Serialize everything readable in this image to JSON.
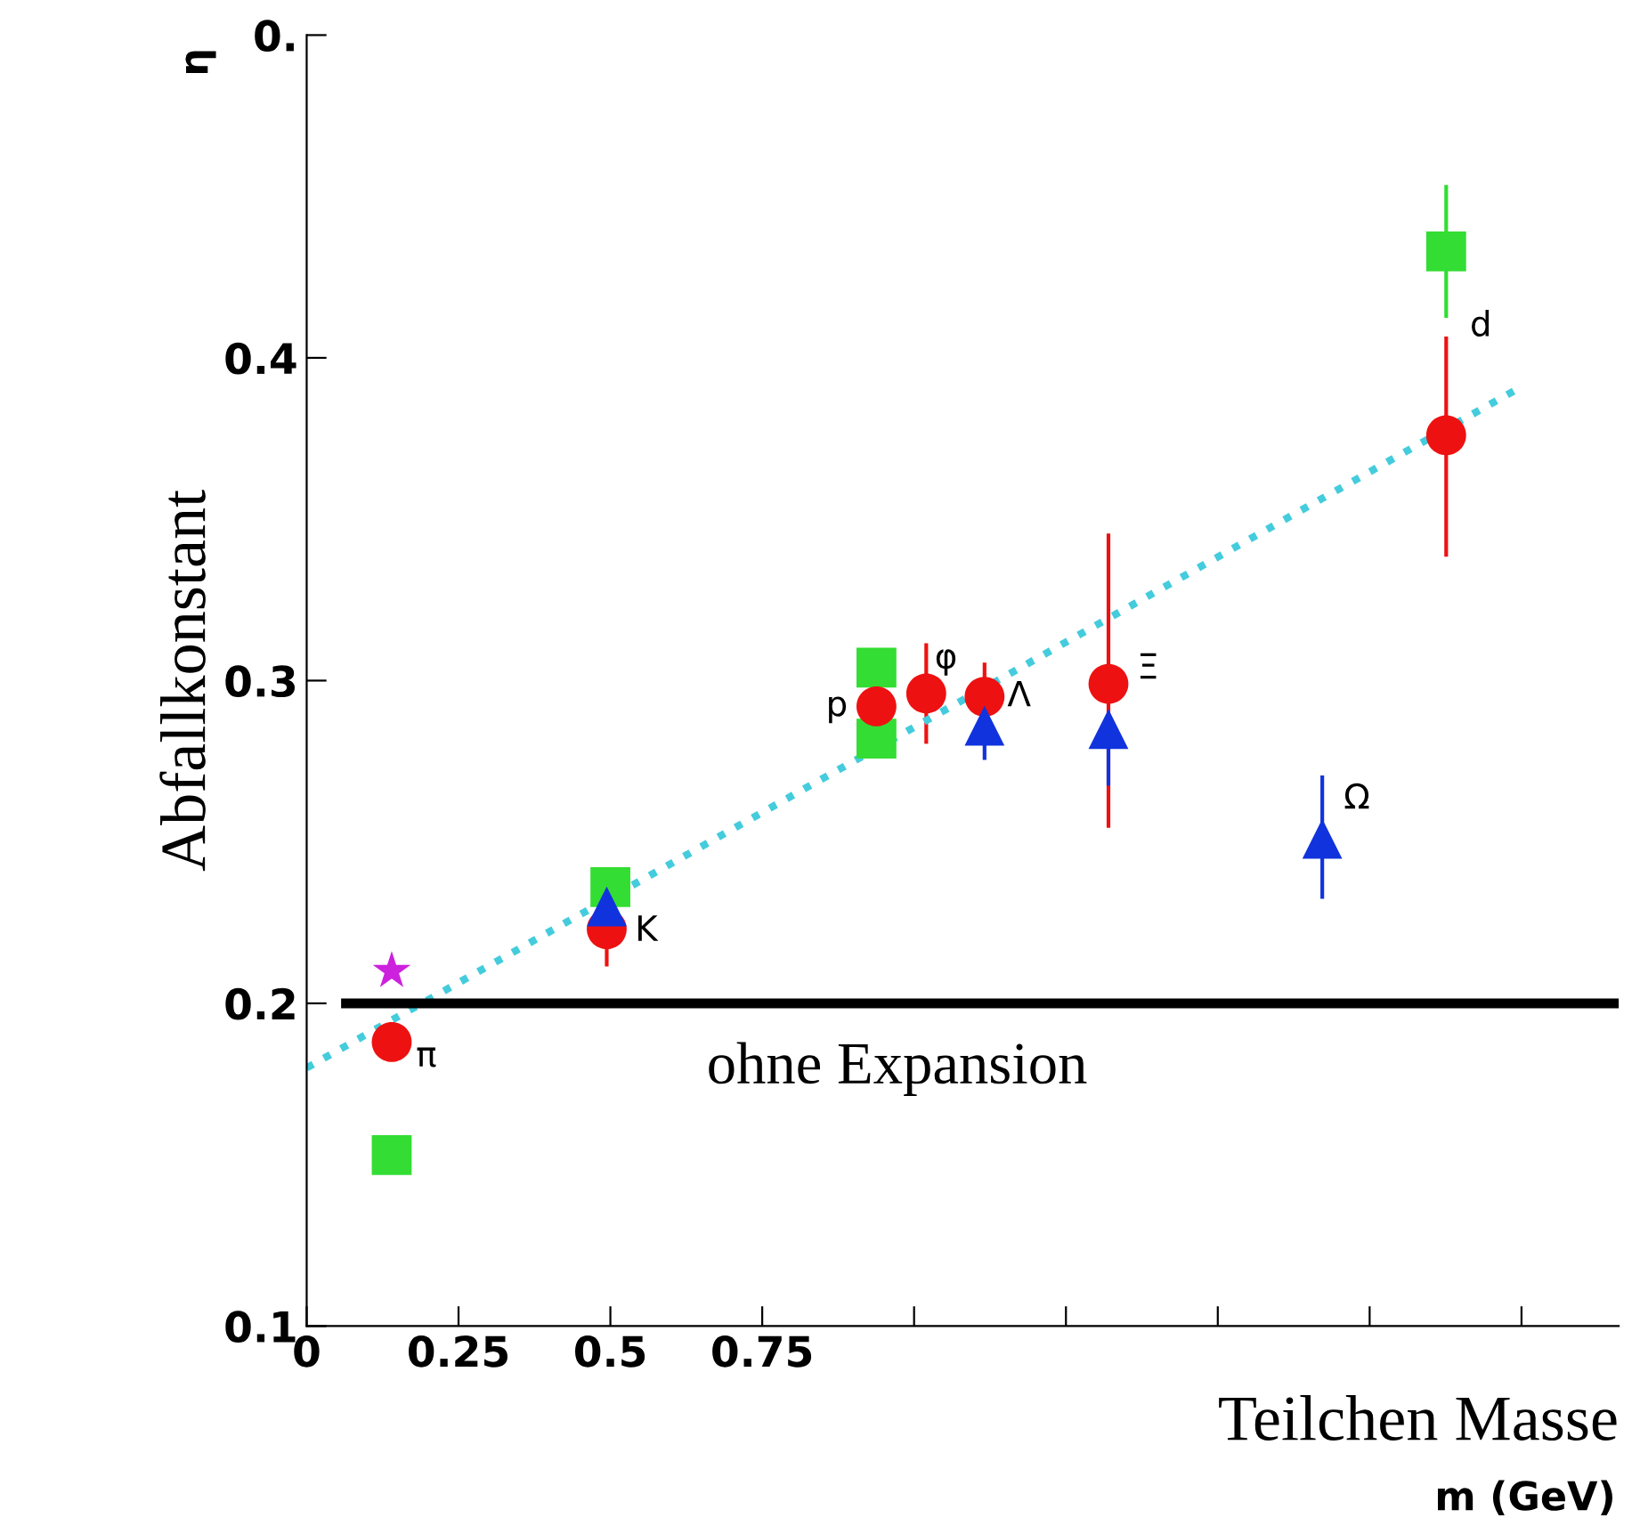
{
  "chart_data": {
    "type": "scatter",
    "xlabel": "Teilchen Masse",
    "ylabel": "Abfallkonstant",
    "xlim": [
      0,
      2.16
    ],
    "ylim": [
      0.1,
      0.5
    ],
    "xticks": [
      0,
      0.25,
      0.5,
      0.75,
      {
        "value": 1.0,
        "label": null
      },
      {
        "value": 1.25,
        "label": null
      },
      {
        "value": 1.5,
        "label": null
      },
      {
        "value": 1.75,
        "label": null
      },
      {
        "value": 2.0,
        "label": null
      }
    ],
    "yticks": [
      0.1,
      0.2,
      0.3,
      0.4,
      {
        "value": 0.5,
        "label": "0."
      }
    ],
    "grid": false,
    "legend": false,
    "series": [
      {
        "marker": "square",
        "color": "#33dd33",
        "x": [
          0.14,
          0.5,
          0.938,
          0.938,
          1.876
        ],
        "values": [
          0.153,
          0.236,
          0.304,
          0.282,
          0.433
        ],
        "errors": [
          null,
          null,
          null,
          null,
          0.02
        ]
      },
      {
        "marker": "circle",
        "color": "#ee1111",
        "x": [
          0.14,
          0.494,
          0.938,
          1.02,
          1.116,
          1.32,
          1.876
        ],
        "values": [
          0.188,
          0.223,
          0.292,
          0.296,
          0.295,
          0.299,
          0.376
        ],
        "errors": [
          0.005,
          0.011,
          0.006,
          0.015,
          0.01,
          [
            0.255,
            0.345
          ],
          [
            0.339,
            0.406
          ]
        ]
      },
      {
        "marker": "triangle",
        "color": "#1133dd",
        "x": [
          0.494,
          1.116,
          1.32,
          1.672
        ],
        "values": [
          0.23,
          0.286,
          0.285,
          0.251
        ],
        "errors": [
          0.006,
          0.01,
          [
            0.268,
            0.285
          ],
          [
            0.233,
            0.27
          ]
        ]
      },
      {
        "marker": "star",
        "color": "#cc22dd",
        "x": [
          0.14
        ],
        "values": [
          0.21
        ]
      },
      {
        "type": "line",
        "line_style": "dotted",
        "color": "#44ccdd",
        "x": [
          0,
          1.99
        ],
        "values": [
          0.18,
          0.39
        ]
      }
    ],
    "ref_lines": [
      {
        "axis": "y",
        "value": 0.2,
        "label": "ohne Expansion",
        "color": "#000000"
      }
    ],
    "annotations": [
      {
        "text": "π",
        "x": 0.14,
        "y": 0.188
      },
      {
        "text": "K",
        "x": 0.494,
        "y": 0.23
      },
      {
        "text": "p",
        "x": 0.938,
        "y": 0.292
      },
      {
        "text": "φ",
        "x": 1.02,
        "y": 0.296
      },
      {
        "text": "Λ",
        "x": 1.116,
        "y": 0.295
      },
      {
        "text": "Ξ",
        "x": 1.32,
        "y": 0.299
      },
      {
        "text": "Ω",
        "x": 1.672,
        "y": 0.251
      },
      {
        "text": "d",
        "x": 1.876,
        "y": 0.376
      },
      "m (GeV)",
      "η"
    ]
  }
}
